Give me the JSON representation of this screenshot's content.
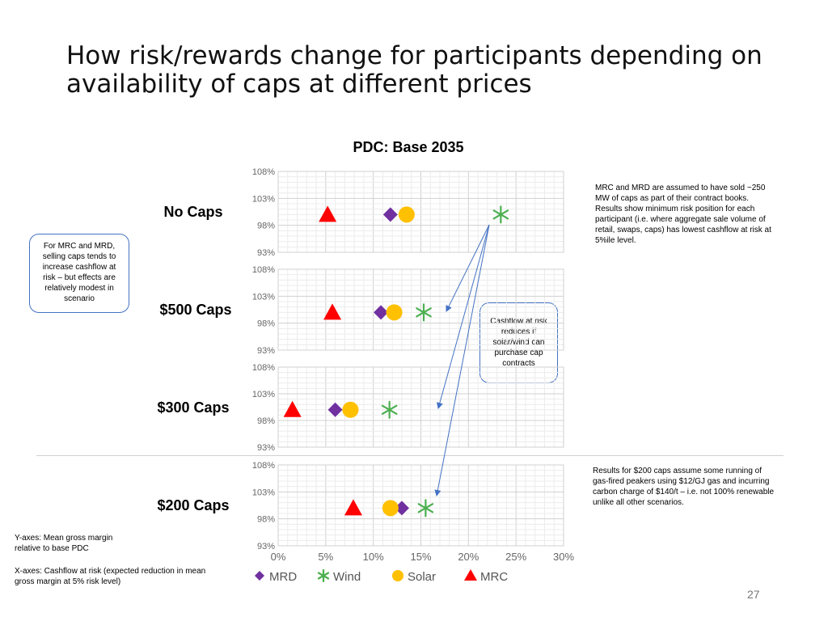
{
  "slide": {
    "title": "How risk/rewards change for participants depending on availability of caps at different prices",
    "page_number": "27"
  },
  "notes": {
    "left_callout": "For MRC and MRD, selling caps tends to increase cashflow at risk – but effects are relatively modest in scenario",
    "right_callout": "Cashflow at risk reduces if solar/wind can purchase cap contracts",
    "top_right": "MRC and MRD are assumed to have sold ~250 MW of caps as part of their contract books. Results show minimum risk position for each participant (i.e. where aggregate sale volume of retail, swaps, caps) has lowest cashflow at risk at 5%ile level.",
    "bottom_right": "Results for $200 caps assume some running of gas-fired peakers using $12/GJ gas and incurring carbon charge of $140/t – i.e. not 100% renewable unlike all other scenarios.",
    "axes_y": "Y-axes: Mean gross margin relative to base PDC",
    "axes_x": "X-axes: Cashflow at risk (expected reduction in mean gross margin at 5% risk level)"
  },
  "chart_data": {
    "type": "scatter",
    "title": "PDC: Base 2035",
    "xlim": [
      0,
      0.3
    ],
    "ylim": [
      0.93,
      1.08
    ],
    "x_ticks": [
      "0%",
      "5%",
      "10%",
      "15%",
      "20%",
      "25%",
      "30%"
    ],
    "y_ticks": [
      "93%",
      "98%",
      "103%",
      "108%"
    ],
    "grid": true,
    "legend_placement": "bottom",
    "legend": [
      {
        "name": "MRD",
        "marker": "diamond",
        "color": "#7030a0"
      },
      {
        "name": "Wind",
        "marker": "asterisk",
        "color": "#4caf50"
      },
      {
        "name": "Solar",
        "marker": "circle",
        "color": "#ffc000"
      },
      {
        "name": "MRC",
        "marker": "triangle",
        "color": "#ff0000"
      }
    ],
    "panels": [
      {
        "label": "No Caps",
        "points": {
          "MRD": [
            0.118,
            1.0
          ],
          "Wind": [
            0.234,
            1.0
          ],
          "Solar": [
            0.135,
            1.0
          ],
          "MRC": [
            0.052,
            1.0
          ]
        }
      },
      {
        "label": "$500 Caps",
        "points": {
          "MRD": [
            0.108,
            1.0
          ],
          "Wind": [
            0.153,
            1.0
          ],
          "Solar": [
            0.122,
            1.0
          ],
          "MRC": [
            0.057,
            1.0
          ]
        }
      },
      {
        "label": "$300 Caps",
        "points": {
          "MRD": [
            0.06,
            1.0
          ],
          "Wind": [
            0.117,
            1.0
          ],
          "Solar": [
            0.076,
            1.0
          ],
          "MRC": [
            0.015,
            1.0
          ]
        }
      },
      {
        "label": "$200 Caps",
        "points": {
          "MRD": [
            0.13,
            1.0
          ],
          "Wind": [
            0.155,
            1.0
          ],
          "Solar": [
            0.118,
            1.0
          ],
          "MRC": [
            0.079,
            1.0
          ]
        }
      }
    ]
  }
}
